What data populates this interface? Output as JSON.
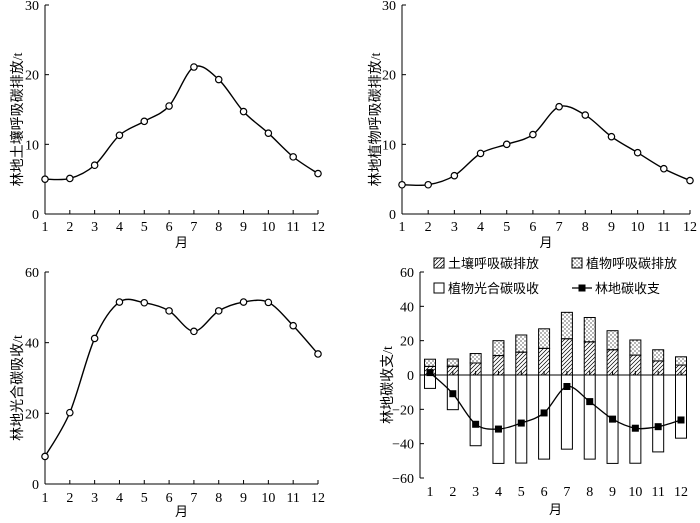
{
  "chart_data": [
    {
      "type": "line",
      "title": "",
      "xlabel": "月",
      "ylabel": "林地土壤呼吸碳排放/t",
      "x": [
        1,
        2,
        3,
        4,
        5,
        6,
        7,
        8,
        9,
        10,
        11,
        12
      ],
      "ylim": [
        0,
        30
      ],
      "yticks": [
        0,
        10,
        20,
        30
      ],
      "values": [
        5.0,
        5.1,
        7.0,
        11.3,
        13.3,
        15.5,
        21.1,
        19.3,
        14.7,
        11.6,
        8.2,
        5.8
      ],
      "grid": false
    },
    {
      "type": "line",
      "title": "",
      "xlabel": "月",
      "ylabel": "林地植物呼吸碳排放/t",
      "x": [
        1,
        2,
        3,
        4,
        5,
        6,
        7,
        8,
        9,
        10,
        11,
        12
      ],
      "ylim": [
        0,
        30
      ],
      "yticks": [
        0,
        10,
        20,
        30
      ],
      "values": [
        4.2,
        4.2,
        5.5,
        8.7,
        10.0,
        11.4,
        15.4,
        14.2,
        11.1,
        8.8,
        6.5,
        4.8
      ],
      "grid": false
    },
    {
      "type": "line",
      "title": "",
      "xlabel": "月",
      "ylabel": "林地光合碳吸收/t",
      "x": [
        1,
        2,
        3,
        4,
        5,
        6,
        7,
        8,
        9,
        10,
        11,
        12
      ],
      "ylim": [
        0,
        60
      ],
      "yticks": [
        0,
        20,
        40,
        60
      ],
      "values": [
        7.8,
        20.2,
        41.2,
        51.5,
        51.3,
        49.0,
        43.2,
        49.0,
        51.5,
        51.4,
        44.8,
        36.8
      ],
      "grid": false
    },
    {
      "type": "bar",
      "title": "",
      "xlabel": "月",
      "ylabel": "林地碳收支/t",
      "categories": [
        "1",
        "2",
        "3",
        "4",
        "5",
        "6",
        "7",
        "8",
        "9",
        "10",
        "11",
        "12"
      ],
      "ylim": [
        -60,
        60
      ],
      "yticks": [
        -60,
        -40,
        -20,
        0,
        20,
        40,
        60
      ],
      "legend_position": "top",
      "series": [
        {
          "name": "土壤呼吸碳排放",
          "kind": "stacked-bar",
          "pattern": "hatch",
          "values": [
            5.0,
            5.1,
            7.0,
            11.3,
            13.3,
            15.5,
            21.1,
            19.3,
            14.7,
            11.6,
            8.2,
            5.8
          ]
        },
        {
          "name": "植物呼吸碳排放",
          "kind": "stacked-bar",
          "pattern": "dots",
          "values": [
            4.2,
            4.2,
            5.5,
            8.7,
            10.0,
            11.4,
            15.4,
            14.2,
            11.1,
            8.8,
            6.5,
            4.8
          ]
        },
        {
          "name": "植物光合碳吸收",
          "kind": "bar",
          "pattern": "empty",
          "values": [
            -7.8,
            -20.2,
            -41.2,
            -51.5,
            -51.3,
            -49.0,
            -43.2,
            -49.0,
            -51.5,
            -51.4,
            -44.8,
            -36.8
          ]
        },
        {
          "name": "林地碳收支",
          "kind": "line",
          "marker": "square",
          "values": [
            1.4,
            -10.9,
            -28.7,
            -31.5,
            -28.0,
            -22.1,
            -6.7,
            -15.5,
            -25.7,
            -31.0,
            -30.1,
            -26.2
          ]
        }
      ],
      "grid": false
    }
  ]
}
